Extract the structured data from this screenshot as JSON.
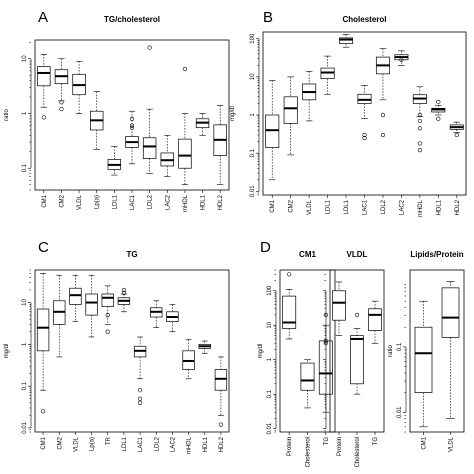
{
  "chart_data": [
    {
      "id": "A",
      "type": "box",
      "title": "TG/cholesterol",
      "ylabel": "ratio",
      "scale": "log",
      "ylim": [
        0.04,
        22
      ],
      "yticks": [
        0.1,
        1,
        10
      ],
      "ytick_labels": [
        "0.1",
        "1",
        "10"
      ],
      "categories": [
        "CM1",
        "CM2",
        "VLDL",
        "Lp(a)",
        "LDL1",
        "LAC1",
        "LDL2",
        "LAC2",
        "mHDL",
        "HDL1",
        "HDL2"
      ],
      "boxes": [
        {
          "lo": 1.3,
          "q1": 3.2,
          "med": 5.5,
          "q3": 7.2,
          "hi": 12,
          "out": [
            0.85
          ]
        },
        {
          "lo": 1.7,
          "q1": 3.5,
          "med": 4.8,
          "q3": 6.3,
          "hi": 10,
          "out": [
            1.6,
            1.2
          ]
        },
        {
          "lo": 1.0,
          "q1": 2.2,
          "med": 3.3,
          "q3": 5.2,
          "hi": 9,
          "out": []
        },
        {
          "lo": 0.22,
          "q1": 0.5,
          "med": 0.75,
          "q3": 1.1,
          "hi": 2.5,
          "out": []
        },
        {
          "lo": 0.075,
          "q1": 0.095,
          "med": 0.115,
          "q3": 0.145,
          "hi": 0.25,
          "out": []
        },
        {
          "lo": 0.12,
          "q1": 0.24,
          "med": 0.3,
          "q3": 0.38,
          "hi": 1.1,
          "out": [
            0.55,
            0.6,
            0.8
          ]
        },
        {
          "lo": 0.08,
          "q1": 0.15,
          "med": 0.25,
          "q3": 0.36,
          "hi": 1.2,
          "out": [
            16
          ]
        },
        {
          "lo": 0.07,
          "q1": 0.11,
          "med": 0.14,
          "q3": 0.19,
          "hi": 0.4,
          "out": []
        },
        {
          "lo": 0.05,
          "q1": 0.1,
          "med": 0.17,
          "q3": 0.34,
          "hi": 1.0,
          "out": [
            6.5
          ]
        },
        {
          "lo": 0.4,
          "q1": 0.55,
          "med": 0.68,
          "q3": 0.8,
          "hi": 1.0,
          "out": []
        },
        {
          "lo": 0.05,
          "q1": 0.17,
          "med": 0.33,
          "q3": 0.62,
          "hi": 1.4,
          "out": []
        }
      ]
    },
    {
      "id": "B",
      "type": "box",
      "title": "Cholesterol",
      "ylabel": "mg/dl",
      "scale": "log",
      "ylim": [
        0.008,
        150
      ],
      "yticks": [
        0.01,
        0.1,
        1,
        10,
        100
      ],
      "ytick_labels": [
        "0.01",
        "0.1",
        "1",
        "10",
        "100"
      ],
      "categories": [
        "CM1",
        "CM2",
        "VLDL",
        "LDL1",
        "LDL1",
        "LAC1",
        "LDL2",
        "LAC2",
        "mHDL",
        "HDL1",
        "HDL2"
      ],
      "boxes": [
        {
          "lo": 0.02,
          "q1": 0.14,
          "med": 0.4,
          "q3": 1.0,
          "hi": 8,
          "out": []
        },
        {
          "lo": 0.09,
          "q1": 0.6,
          "med": 1.5,
          "q3": 3.0,
          "hi": 10,
          "out": []
        },
        {
          "lo": 0.7,
          "q1": 2.5,
          "med": 4.0,
          "q3": 6.5,
          "hi": 14,
          "out": []
        },
        {
          "lo": 3.5,
          "q1": 9,
          "med": 13,
          "q3": 17,
          "hi": 35,
          "out": []
        },
        {
          "lo": 60,
          "q1": 75,
          "med": 95,
          "q3": 105,
          "hi": 130,
          "out": []
        },
        {
          "lo": 0.8,
          "q1": 2.0,
          "med": 2.5,
          "q3": 3.5,
          "hi": 6,
          "out": [
            0.3,
            0.25
          ]
        },
        {
          "lo": 2.5,
          "q1": 12,
          "med": 20,
          "q3": 33,
          "hi": 55,
          "out": [
            1.0,
            0.3
          ]
        },
        {
          "lo": 20,
          "q1": 28,
          "med": 33,
          "q3": 38,
          "hi": 48,
          "out": [
            28
          ]
        },
        {
          "lo": 0.9,
          "q1": 2.0,
          "med": 2.7,
          "q3": 3.4,
          "hi": 5.5,
          "out": [
            1.0,
            0.7,
            0.45,
            0.12,
            0.18
          ]
        },
        {
          "lo": 1.0,
          "q1": 1.2,
          "med": 1.4,
          "q3": 1.5,
          "hi": 1.8,
          "out": [
            2.2,
            0.8
          ]
        },
        {
          "lo": 0.35,
          "q1": 0.42,
          "med": 0.48,
          "q3": 0.55,
          "hi": 0.65,
          "out": [
            0.3
          ]
        }
      ]
    },
    {
      "id": "C",
      "type": "box",
      "title": "TG",
      "ylabel": "mg/dl",
      "scale": "log",
      "ylim": [
        0.008,
        60
      ],
      "yticks": [
        0.01,
        0.1,
        1,
        10
      ],
      "ytick_labels": [
        "0.01",
        "0.1",
        "1",
        "10"
      ],
      "categories": [
        "CM1",
        "CM2",
        "VLDL",
        "Lp(a)",
        "TR",
        "LDL1",
        "LAC1",
        "LDL2",
        "LAC2",
        "mHDL",
        "HDL1",
        "HDL2"
      ],
      "boxes": [
        {
          "lo": 0.08,
          "q1": 0.7,
          "med": 2.5,
          "q3": 7,
          "hi": 50,
          "out": [
            0.025
          ]
        },
        {
          "lo": 0.5,
          "q1": 3,
          "med": 6,
          "q3": 11,
          "hi": 45,
          "out": []
        },
        {
          "lo": 3.5,
          "q1": 9,
          "med": 15,
          "q3": 22,
          "hi": 45,
          "out": []
        },
        {
          "lo": 1.5,
          "q1": 5,
          "med": 10,
          "q3": 16,
          "hi": 45,
          "out": []
        },
        {
          "lo": 3,
          "q1": 8,
          "med": 13,
          "q3": 16,
          "hi": 25,
          "out": [
            5,
            2
          ]
        },
        {
          "lo": 6,
          "q1": 9,
          "med": 11,
          "q3": 13,
          "hi": 16,
          "out": [
            20,
            17
          ]
        },
        {
          "lo": 0.15,
          "q1": 0.5,
          "med": 0.7,
          "q3": 0.9,
          "hi": 1.5,
          "out": [
            0.08,
            0.05,
            0.04
          ]
        },
        {
          "lo": 2.5,
          "q1": 4.5,
          "med": 6,
          "q3": 7.5,
          "hi": 11,
          "out": []
        },
        {
          "lo": 2,
          "q1": 3.5,
          "med": 4.5,
          "q3": 6,
          "hi": 9,
          "out": []
        },
        {
          "lo": 0.15,
          "q1": 0.25,
          "med": 0.4,
          "q3": 0.7,
          "hi": 1.3,
          "out": []
        },
        {
          "lo": 0.6,
          "q1": 0.8,
          "med": 0.9,
          "q3": 1.0,
          "hi": 1.2,
          "out": []
        },
        {
          "lo": 0.02,
          "q1": 0.08,
          "med": 0.15,
          "q3": 0.25,
          "hi": 0.5,
          "out": [
            0.012
          ]
        }
      ]
    },
    {
      "id": "D",
      "type": "box",
      "title": "CM1",
      "ylabel": "mg/dl",
      "scale": "log",
      "ylim": [
        0.008,
        400
      ],
      "yticks": [
        0.01,
        0.1,
        1,
        10,
        100
      ],
      "ytick_labels": [
        "0.01",
        "0.1",
        "1",
        "10",
        "100"
      ],
      "categories": [
        "Protein",
        "Cholesterol",
        "TG"
      ],
      "boxes": [
        {
          "lo": 4,
          "q1": 8,
          "med": 12,
          "q3": 70,
          "hi": 110,
          "out": [
            300
          ]
        },
        {
          "lo": 0.04,
          "q1": 0.13,
          "med": 0.25,
          "q3": 0.8,
          "hi": 1.0,
          "out": []
        },
        {
          "lo": 0.03,
          "q1": 0.1,
          "med": 0.4,
          "q3": 3.5,
          "hi": 10,
          "out": [
            20,
            3.5,
            3
          ]
        }
      ]
    },
    {
      "id": "D2",
      "type": "box",
      "title": "VLDL",
      "scale": "log",
      "ylim": [
        0.008,
        400
      ],
      "yticks": [
        0.01,
        0.1,
        1,
        10,
        100
      ],
      "categories": [
        "Protein",
        "Cholesterol",
        "TG"
      ],
      "boxes": [
        {
          "lo": 5,
          "q1": 14,
          "med": 45,
          "q3": 100,
          "hi": 180,
          "out": []
        },
        {
          "lo": 0.1,
          "q1": 0.2,
          "med": 4,
          "q3": 5,
          "hi": 8,
          "out": [
            20
          ]
        },
        {
          "lo": 3,
          "q1": 7,
          "med": 20,
          "q3": 30,
          "hi": 50,
          "out": []
        }
      ]
    },
    {
      "id": "D3",
      "type": "box",
      "title": "Lipids/Protein",
      "ylabel": "ratio",
      "scale": "log",
      "ylim": [
        0.005,
        1.5
      ],
      "yticks": [
        0.01,
        0.1
      ],
      "ytick_labels": [
        "0.01",
        "0.1"
      ],
      "categories": [
        "CM1",
        "VLDL"
      ],
      "boxes": [
        {
          "lo": 0.006,
          "q1": 0.02,
          "med": 0.08,
          "q3": 0.2,
          "hi": 0.5,
          "out": []
        },
        {
          "lo": 0.008,
          "q1": 0.14,
          "med": 0.28,
          "q3": 0.8,
          "hi": 1.0,
          "out": []
        }
      ]
    }
  ],
  "panel_labels": [
    "A",
    "B",
    "C",
    "D"
  ]
}
